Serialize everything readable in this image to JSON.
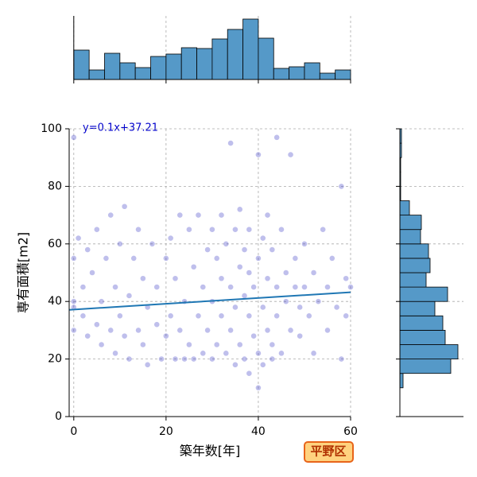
{
  "chart_data": [
    {
      "type": "scatter",
      "x": [
        0,
        0,
        0,
        0,
        0,
        1,
        2,
        2,
        3,
        3,
        4,
        5,
        5,
        6,
        6,
        7,
        8,
        8,
        9,
        9,
        10,
        10,
        11,
        11,
        12,
        12,
        13,
        14,
        14,
        15,
        15,
        16,
        16,
        17,
        18,
        18,
        19,
        20,
        20,
        21,
        21,
        22,
        22,
        23,
        23,
        24,
        24,
        25,
        25,
        26,
        26,
        27,
        27,
        28,
        28,
        29,
        29,
        30,
        30,
        30,
        31,
        31,
        32,
        32,
        32,
        33,
        33,
        34,
        34,
        34,
        35,
        35,
        35,
        36,
        36,
        36,
        37,
        37,
        37,
        38,
        38,
        38,
        38,
        39,
        39,
        40,
        40,
        40,
        40,
        41,
        41,
        41,
        42,
        42,
        42,
        43,
        43,
        43,
        44,
        44,
        44,
        45,
        45,
        46,
        46,
        47,
        47,
        48,
        48,
        49,
        49,
        50,
        50,
        51,
        52,
        52,
        53,
        54,
        55,
        55,
        56,
        57,
        58,
        58,
        59,
        59,
        60
      ],
      "y": [
        97,
        55,
        40,
        38,
        30,
        62,
        45,
        35,
        58,
        28,
        50,
        32,
        65,
        25,
        40,
        55,
        30,
        70,
        45,
        22,
        35,
        60,
        28,
        73,
        42,
        20,
        55,
        30,
        65,
        48,
        25,
        38,
        18,
        60,
        32,
        45,
        20,
        55,
        28,
        35,
        62,
        20,
        48,
        30,
        70,
        20,
        40,
        65,
        25,
        52,
        20,
        35,
        70,
        45,
        22,
        58,
        30,
        65,
        20,
        40,
        55,
        25,
        70,
        35,
        48,
        22,
        60,
        95,
        30,
        45,
        18,
        65,
        38,
        52,
        25,
        72,
        20,
        42,
        58,
        15,
        35,
        50,
        65,
        28,
        45,
        10,
        22,
        55,
        91,
        38,
        62,
        18,
        48,
        30,
        70,
        20,
        58,
        25,
        45,
        35,
        97,
        65,
        22,
        50,
        40,
        30,
        91,
        55,
        45,
        38,
        28,
        60,
        45,
        35,
        50,
        22,
        40,
        65,
        30,
        45,
        55,
        38,
        80,
        20,
        48,
        35,
        45
      ],
      "color": "#2a2ac0",
      "xlim": [
        -1,
        60
      ],
      "ylim": [
        0,
        100
      ],
      "xticks": [
        0,
        20,
        40,
        60
      ],
      "yticks": [
        0,
        20,
        40,
        60,
        80,
        100
      ],
      "xlabel": "築年数[年]",
      "ylabel": "専有面積[m2]",
      "grid": true,
      "annotation": "y=0.1x+37.21",
      "fit": {
        "x": [
          -1,
          60
        ],
        "y": [
          37.1,
          43.2
        ],
        "color": "#1f77b4"
      },
      "label_box": "平野区"
    },
    {
      "type": "histogram",
      "orientation": "vertical",
      "bins": [
        0,
        3.33,
        6.67,
        10,
        13.33,
        16.67,
        20,
        23.33,
        26.67,
        30,
        33.33,
        36.67,
        40,
        43.33,
        46.67,
        50,
        53.33,
        56.67,
        60
      ],
      "counts": [
        37,
        12,
        33,
        21,
        15,
        29,
        32,
        40,
        39,
        51,
        63,
        76,
        52,
        14,
        16,
        21,
        8,
        12
      ],
      "color": "#5599c8",
      "xlim": [
        -1,
        60
      ],
      "ylim": [
        0,
        80
      ]
    },
    {
      "type": "histogram",
      "orientation": "horizontal",
      "bins": [
        0,
        5,
        10,
        15,
        20,
        25,
        30,
        35,
        40,
        45,
        50,
        55,
        60,
        65,
        70,
        75,
        80,
        85,
        90,
        95,
        100
      ],
      "counts": [
        0,
        0,
        4,
        64,
        73,
        57,
        54,
        44,
        60,
        33,
        38,
        36,
        26,
        27,
        12,
        1,
        1,
        1,
        2,
        2
      ],
      "color": "#5599c8",
      "xlim": [
        0,
        80
      ],
      "ylim": [
        0,
        100
      ]
    }
  ]
}
